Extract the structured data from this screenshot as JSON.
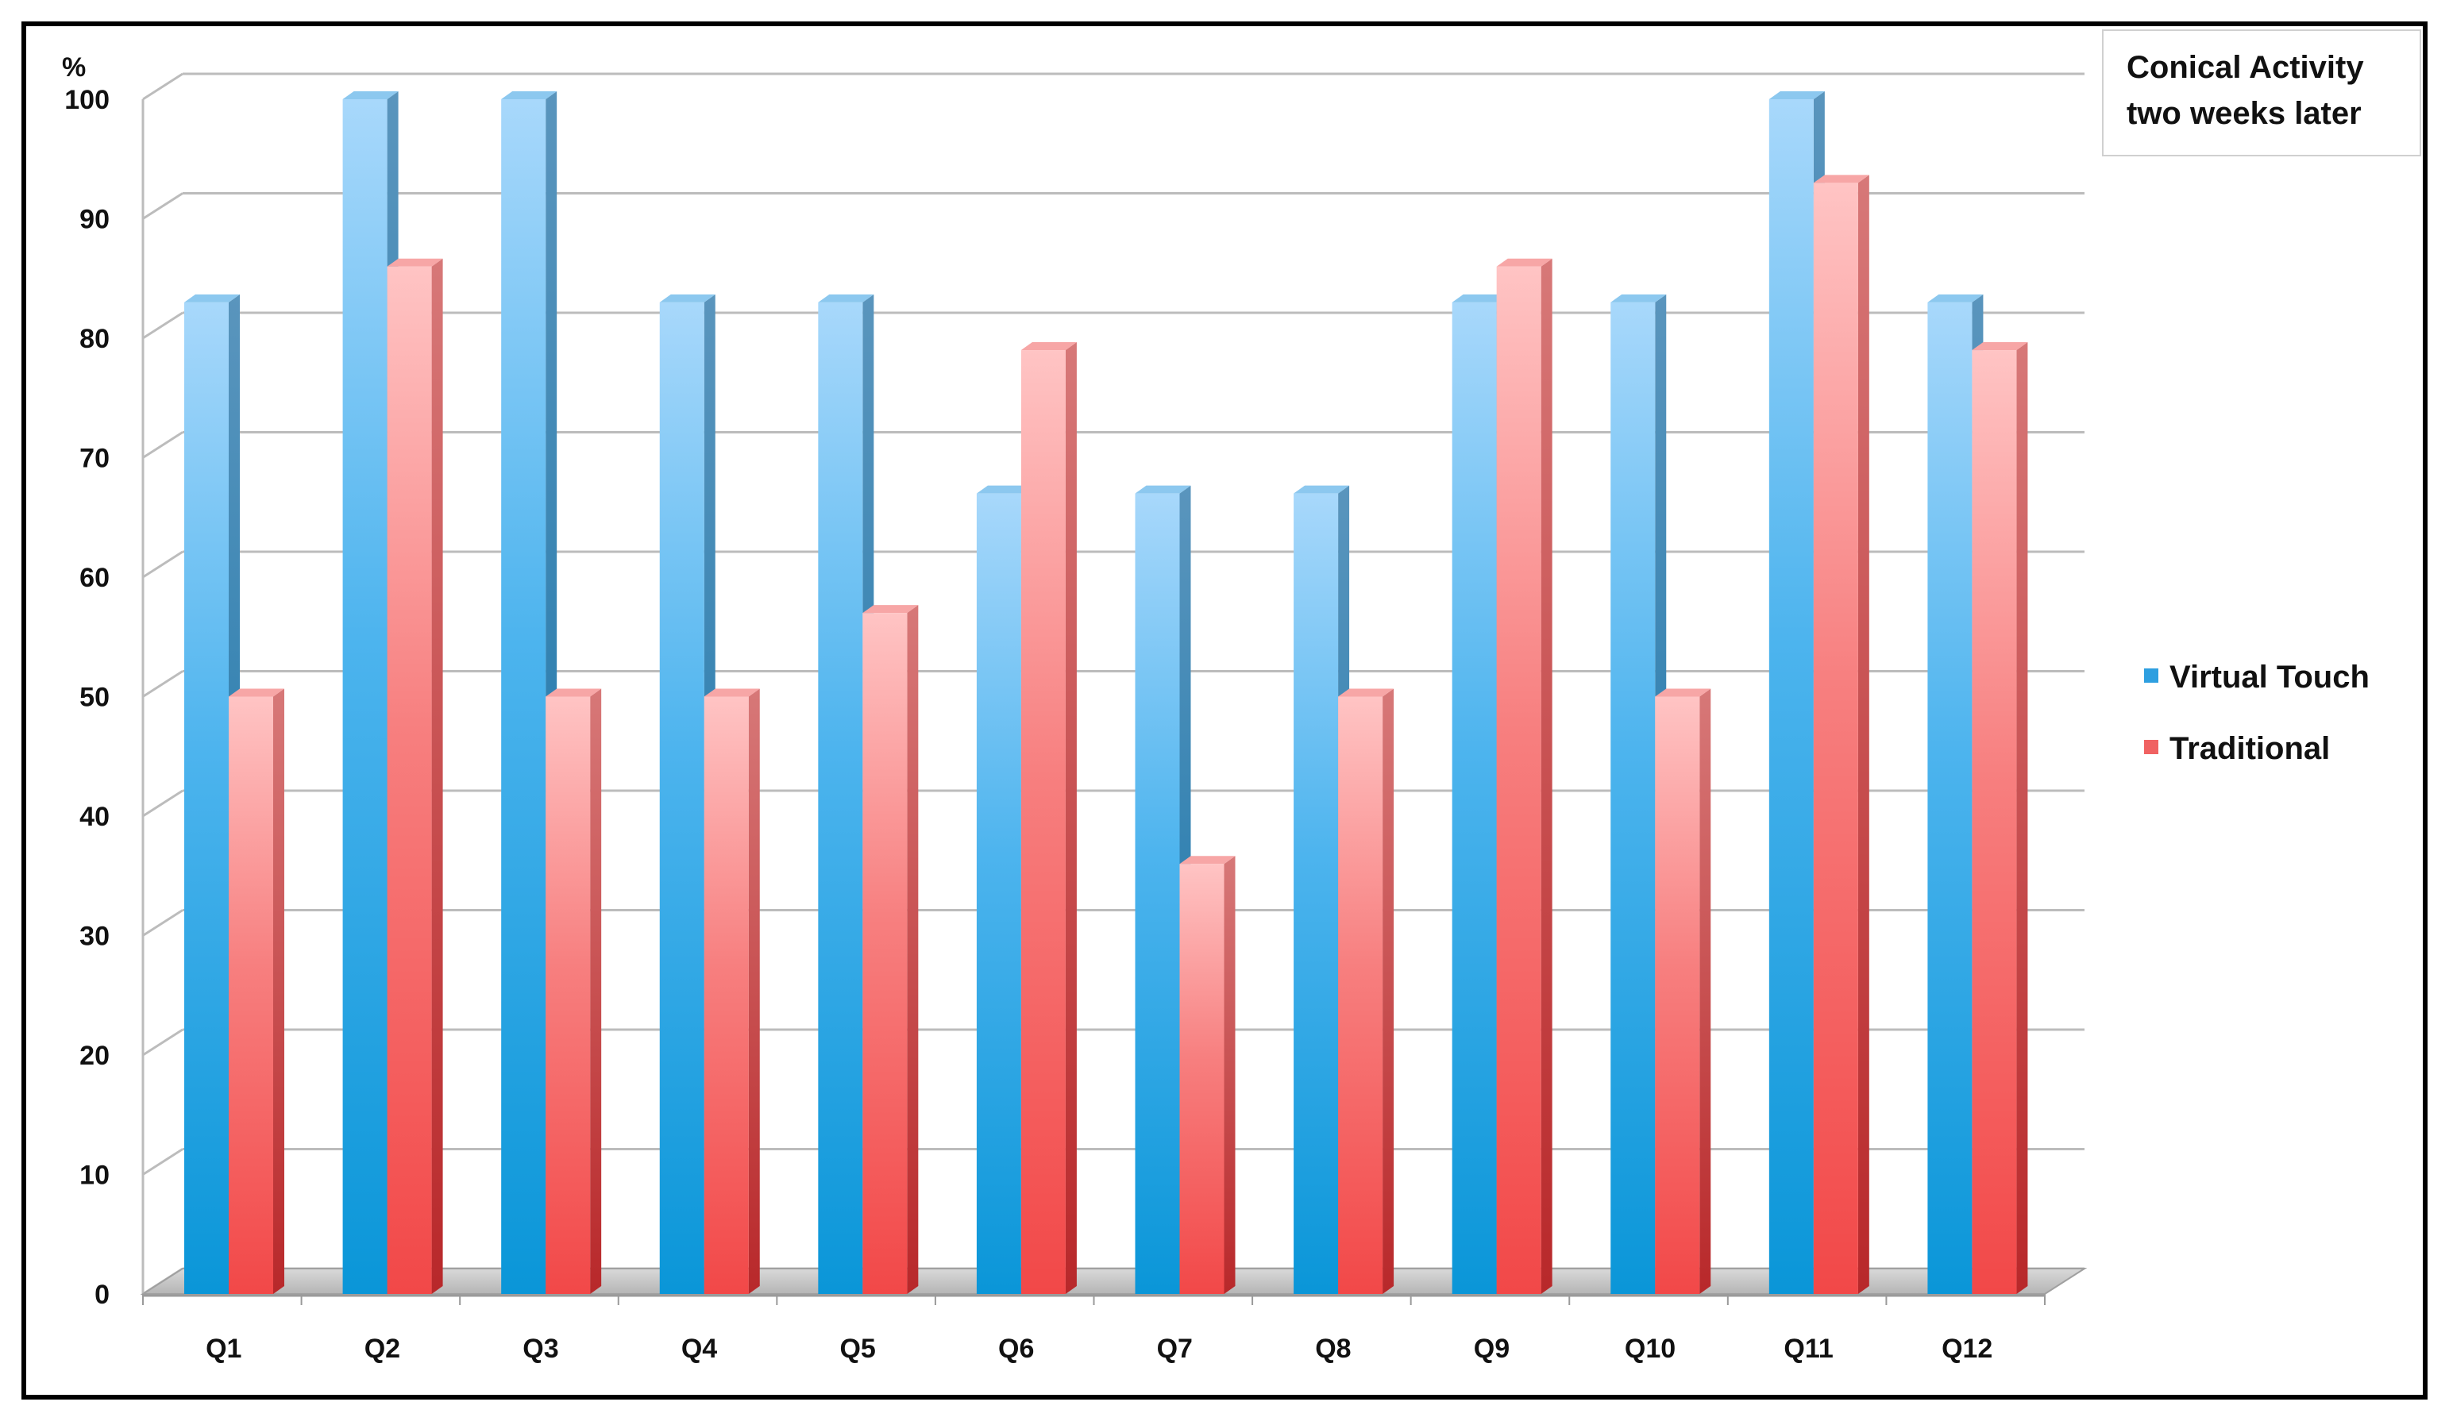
{
  "chart_data": {
    "type": "bar",
    "title": [
      "Conical Activity",
      "two weeks later"
    ],
    "ylabel": "%",
    "xlabel": "",
    "ylim": [
      0,
      100
    ],
    "yticks": [
      0,
      10,
      20,
      30,
      40,
      50,
      60,
      70,
      80,
      90,
      100
    ],
    "categories": [
      "Q1",
      "Q2",
      "Q3",
      "Q4",
      "Q5",
      "Q6",
      "Q7",
      "Q8",
      "Q9",
      "Q10",
      "Q11",
      "Q12"
    ],
    "series": [
      {
        "name": "Virtual Touch",
        "values": [
          83,
          100,
          100,
          83,
          83,
          67,
          67,
          67,
          83,
          83,
          100,
          83
        ],
        "color": "#2e9fe0"
      },
      {
        "name": "Traditional",
        "values": [
          50,
          86,
          50,
          50,
          57,
          79,
          36,
          50,
          86,
          50,
          93,
          79
        ],
        "color": "#f06262"
      }
    ],
    "grid": true,
    "legend": "right"
  }
}
